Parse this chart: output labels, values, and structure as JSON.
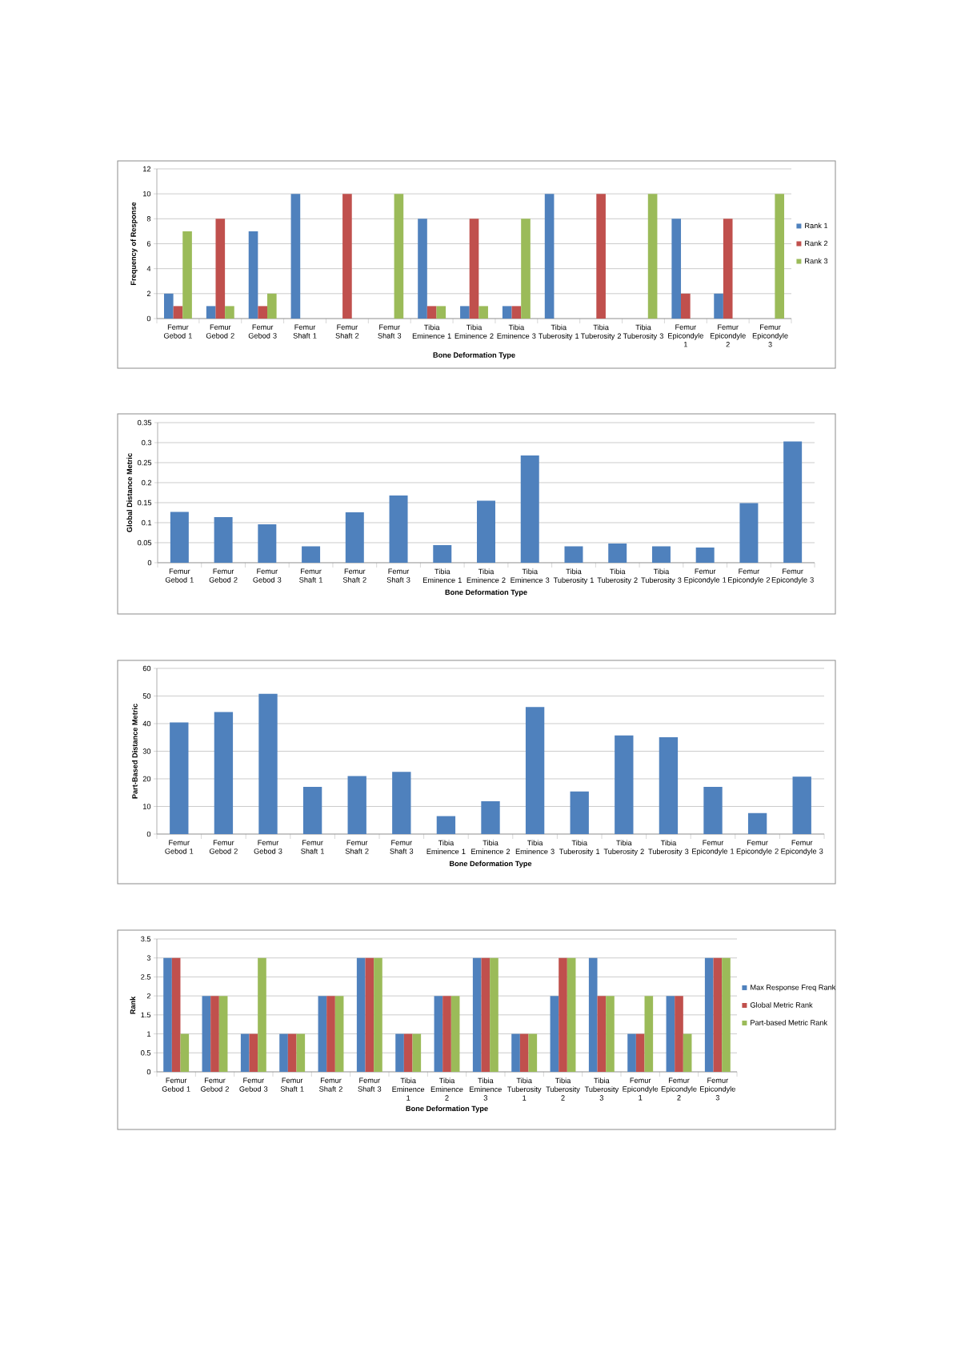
{
  "chart_data": [
    {
      "type": "bar",
      "xlabel": "Bone Deformation Type",
      "ylabel": "Frequency of Response",
      "categories": [
        "Femur Gebod 1",
        "Femur Gebod 2",
        "Femur Gebod 3",
        "Femur Shaft 1",
        "Femur Shaft 2",
        "Femur Shaft 3",
        "Tibia Eminence 1",
        "Tibia Eminence 2",
        "Tibia Eminence 3",
        "Tibia Tuberosity 1",
        "Tibia Tuberosity 2",
        "Tibia Tuberosity 3",
        "Femur Epicondyle 1",
        "Femur Epicondyle 2",
        "Femur Epicondyle 3"
      ],
      "series": [
        {
          "name": "Rank 1",
          "color": "#4f81bd",
          "values": [
            2,
            1,
            7,
            10,
            0,
            0,
            8,
            1,
            1,
            10,
            0,
            0,
            8,
            2,
            0
          ]
        },
        {
          "name": "Rank 2",
          "color": "#c0504d",
          "values": [
            1,
            8,
            1,
            0,
            10,
            0,
            1,
            8,
            1,
            0,
            10,
            0,
            2,
            8,
            0
          ]
        },
        {
          "name": "Rank 3",
          "color": "#9bbb59",
          "values": [
            7,
            1,
            2,
            0,
            0,
            10,
            1,
            1,
            8,
            0,
            0,
            10,
            0,
            0,
            10
          ]
        }
      ],
      "ylim": [
        0,
        12
      ],
      "yticks": [
        0,
        2,
        4,
        6,
        8,
        10,
        12
      ],
      "grid": "y",
      "legend": "right"
    },
    {
      "type": "bar",
      "xlabel": "Bone Deformation Type",
      "ylabel": "Global Distance Metric",
      "categories": [
        "Femur Gebod 1",
        "Femur Gebod 2",
        "Femur Gebod 3",
        "Femur Shaft 1",
        "Femur Shaft 2",
        "Femur Shaft 3",
        "Tibia Eminence 1",
        "Tibia Eminence 2",
        "Tibia Eminence 3",
        "Tibia Tuberosity 1",
        "Tibia Tuberosity 2",
        "Tibia Tuberosity 3",
        "Femur Epicondyle 1",
        "Femur Epicondyle 2",
        "Femur Epicondyle 3"
      ],
      "values": [
        0.127,
        0.114,
        0.096,
        0.041,
        0.126,
        0.168,
        0.044,
        0.155,
        0.268,
        0.041,
        0.048,
        0.041,
        0.038,
        0.149,
        0.303
      ],
      "color": "#4f81bd",
      "ylim": [
        0,
        0.35
      ],
      "yticks": [
        0,
        0.05,
        0.1,
        0.15,
        0.2,
        0.25,
        0.3,
        0.35
      ],
      "grid": "y"
    },
    {
      "type": "bar",
      "xlabel": "Bone Deformation Type",
      "ylabel": "Part-Based Distance Metric",
      "categories": [
        "Femur Gebod 1",
        "Femur Gebod 2",
        "Femur Gebod 3",
        "Femur Shaft 1",
        "Femur Shaft 2",
        "Femur Shaft 3",
        "Tibia Eminence 1",
        "Tibia Eminence 2",
        "Tibia Eminence 3",
        "Tibia Tuberosity 1",
        "Tibia Tuberosity 2",
        "Tibia Tuberosity 3",
        "Femur Epicondyle 1",
        "Femur Epicondyle 2",
        "Femur Epicondyle 3"
      ],
      "values": [
        40.4,
        44.2,
        50.8,
        17.1,
        21.0,
        22.5,
        6.5,
        11.9,
        46.0,
        15.4,
        35.7,
        35.1,
        17.1,
        7.6,
        20.8
      ],
      "color": "#4f81bd",
      "ylim": [
        0,
        60
      ],
      "yticks": [
        0,
        10,
        20,
        30,
        40,
        50,
        60
      ],
      "grid": "y"
    },
    {
      "type": "bar",
      "xlabel": "Bone Deformation Type",
      "ylabel": "Rank",
      "categories": [
        "Femur Gebod 1",
        "Femur Gebod 2",
        "Femur Gebod 3",
        "Femur Shaft 1",
        "Femur Shaft 2",
        "Femur Shaft 3",
        "Tibia Eminence 1",
        "Tibia Eminence 2",
        "Tibia Eminence 3",
        "Tibia Tuberosity 1",
        "Tibia Tuberosity 2",
        "Tibia Tuberosity 3",
        "Femur Epicondyle 1",
        "Femur Epicondyle 2",
        "Femur Epicondyle 3"
      ],
      "series": [
        {
          "name": "Max Response Freq Rank",
          "color": "#4f81bd",
          "values": [
            3,
            2,
            1,
            1,
            2,
            3,
            1,
            2,
            3,
            1,
            2,
            3,
            1,
            2,
            3
          ]
        },
        {
          "name": "Global Metric Rank",
          "color": "#c0504d",
          "values": [
            3,
            2,
            1,
            1,
            2,
            3,
            1,
            2,
            3,
            1,
            3,
            2,
            1,
            2,
            3
          ]
        },
        {
          "name": "Part-based Metric Rank",
          "color": "#9bbb59",
          "values": [
            1,
            2,
            3,
            1,
            2,
            3,
            1,
            2,
            3,
            1,
            3,
            2,
            2,
            1,
            3
          ]
        }
      ],
      "ylim": [
        0,
        3.5
      ],
      "yticks": [
        0,
        0.5,
        1,
        1.5,
        2,
        2.5,
        3,
        3.5
      ],
      "grid": "y",
      "legend": "right"
    }
  ]
}
